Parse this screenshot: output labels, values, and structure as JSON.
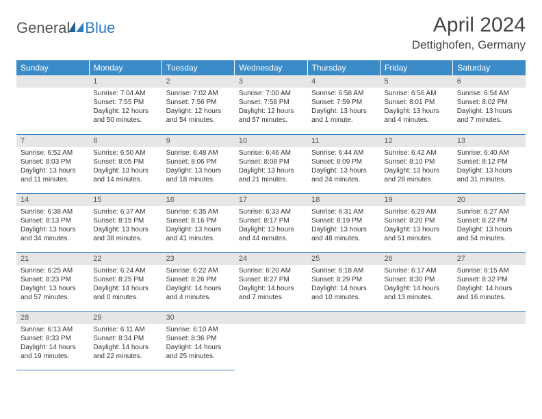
{
  "brand": {
    "text1": "General",
    "text2": "Blue"
  },
  "title": "April 2024",
  "location": "Dettighofen, Germany",
  "colors": {
    "header_bg": "#3b8bc9",
    "header_text": "#ffffff",
    "daynum_bg": "#e6e6e6",
    "row_border": "#2b7bbf",
    "logo_accent": "#2b7bbf",
    "body_text": "#333333"
  },
  "weekdays": [
    "Sunday",
    "Monday",
    "Tuesday",
    "Wednesday",
    "Thursday",
    "Friday",
    "Saturday"
  ],
  "weeks": [
    [
      {
        "n": "",
        "lines": []
      },
      {
        "n": "1",
        "lines": [
          "Sunrise: 7:04 AM",
          "Sunset: 7:55 PM",
          "Daylight: 12 hours",
          "and 50 minutes."
        ]
      },
      {
        "n": "2",
        "lines": [
          "Sunrise: 7:02 AM",
          "Sunset: 7:56 PM",
          "Daylight: 12 hours",
          "and 54 minutes."
        ]
      },
      {
        "n": "3",
        "lines": [
          "Sunrise: 7:00 AM",
          "Sunset: 7:58 PM",
          "Daylight: 12 hours",
          "and 57 minutes."
        ]
      },
      {
        "n": "4",
        "lines": [
          "Sunrise: 6:58 AM",
          "Sunset: 7:59 PM",
          "Daylight: 13 hours",
          "and 1 minute."
        ]
      },
      {
        "n": "5",
        "lines": [
          "Sunrise: 6:56 AM",
          "Sunset: 8:01 PM",
          "Daylight: 13 hours",
          "and 4 minutes."
        ]
      },
      {
        "n": "6",
        "lines": [
          "Sunrise: 6:54 AM",
          "Sunset: 8:02 PM",
          "Daylight: 13 hours",
          "and 7 minutes."
        ]
      }
    ],
    [
      {
        "n": "7",
        "lines": [
          "Sunrise: 6:52 AM",
          "Sunset: 8:03 PM",
          "Daylight: 13 hours",
          "and 11 minutes."
        ]
      },
      {
        "n": "8",
        "lines": [
          "Sunrise: 6:50 AM",
          "Sunset: 8:05 PM",
          "Daylight: 13 hours",
          "and 14 minutes."
        ]
      },
      {
        "n": "9",
        "lines": [
          "Sunrise: 6:48 AM",
          "Sunset: 8:06 PM",
          "Daylight: 13 hours",
          "and 18 minutes."
        ]
      },
      {
        "n": "10",
        "lines": [
          "Sunrise: 6:46 AM",
          "Sunset: 8:08 PM",
          "Daylight: 13 hours",
          "and 21 minutes."
        ]
      },
      {
        "n": "11",
        "lines": [
          "Sunrise: 6:44 AM",
          "Sunset: 8:09 PM",
          "Daylight: 13 hours",
          "and 24 minutes."
        ]
      },
      {
        "n": "12",
        "lines": [
          "Sunrise: 6:42 AM",
          "Sunset: 8:10 PM",
          "Daylight: 13 hours",
          "and 28 minutes."
        ]
      },
      {
        "n": "13",
        "lines": [
          "Sunrise: 6:40 AM",
          "Sunset: 8:12 PM",
          "Daylight: 13 hours",
          "and 31 minutes."
        ]
      }
    ],
    [
      {
        "n": "14",
        "lines": [
          "Sunrise: 6:38 AM",
          "Sunset: 8:13 PM",
          "Daylight: 13 hours",
          "and 34 minutes."
        ]
      },
      {
        "n": "15",
        "lines": [
          "Sunrise: 6:37 AM",
          "Sunset: 8:15 PM",
          "Daylight: 13 hours",
          "and 38 minutes."
        ]
      },
      {
        "n": "16",
        "lines": [
          "Sunrise: 6:35 AM",
          "Sunset: 8:16 PM",
          "Daylight: 13 hours",
          "and 41 minutes."
        ]
      },
      {
        "n": "17",
        "lines": [
          "Sunrise: 6:33 AM",
          "Sunset: 8:17 PM",
          "Daylight: 13 hours",
          "and 44 minutes."
        ]
      },
      {
        "n": "18",
        "lines": [
          "Sunrise: 6:31 AM",
          "Sunset: 8:19 PM",
          "Daylight: 13 hours",
          "and 48 minutes."
        ]
      },
      {
        "n": "19",
        "lines": [
          "Sunrise: 6:29 AM",
          "Sunset: 8:20 PM",
          "Daylight: 13 hours",
          "and 51 minutes."
        ]
      },
      {
        "n": "20",
        "lines": [
          "Sunrise: 6:27 AM",
          "Sunset: 8:22 PM",
          "Daylight: 13 hours",
          "and 54 minutes."
        ]
      }
    ],
    [
      {
        "n": "21",
        "lines": [
          "Sunrise: 6:25 AM",
          "Sunset: 8:23 PM",
          "Daylight: 13 hours",
          "and 57 minutes."
        ]
      },
      {
        "n": "22",
        "lines": [
          "Sunrise: 6:24 AM",
          "Sunset: 8:25 PM",
          "Daylight: 14 hours",
          "and 0 minutes."
        ]
      },
      {
        "n": "23",
        "lines": [
          "Sunrise: 6:22 AM",
          "Sunset: 8:26 PM",
          "Daylight: 14 hours",
          "and 4 minutes."
        ]
      },
      {
        "n": "24",
        "lines": [
          "Sunrise: 6:20 AM",
          "Sunset: 8:27 PM",
          "Daylight: 14 hours",
          "and 7 minutes."
        ]
      },
      {
        "n": "25",
        "lines": [
          "Sunrise: 6:18 AM",
          "Sunset: 8:29 PM",
          "Daylight: 14 hours",
          "and 10 minutes."
        ]
      },
      {
        "n": "26",
        "lines": [
          "Sunrise: 6:17 AM",
          "Sunset: 8:30 PM",
          "Daylight: 14 hours",
          "and 13 minutes."
        ]
      },
      {
        "n": "27",
        "lines": [
          "Sunrise: 6:15 AM",
          "Sunset: 8:32 PM",
          "Daylight: 14 hours",
          "and 16 minutes."
        ]
      }
    ],
    [
      {
        "n": "28",
        "lines": [
          "Sunrise: 6:13 AM",
          "Sunset: 8:33 PM",
          "Daylight: 14 hours",
          "and 19 minutes."
        ]
      },
      {
        "n": "29",
        "lines": [
          "Sunrise: 6:11 AM",
          "Sunset: 8:34 PM",
          "Daylight: 14 hours",
          "and 22 minutes."
        ]
      },
      {
        "n": "30",
        "lines": [
          "Sunrise: 6:10 AM",
          "Sunset: 8:36 PM",
          "Daylight: 14 hours",
          "and 25 minutes."
        ]
      },
      {
        "n": "",
        "lines": [],
        "trailing": true
      },
      {
        "n": "",
        "lines": [],
        "trailing": true
      },
      {
        "n": "",
        "lines": [],
        "trailing": true
      },
      {
        "n": "",
        "lines": [],
        "trailing": true
      }
    ]
  ]
}
